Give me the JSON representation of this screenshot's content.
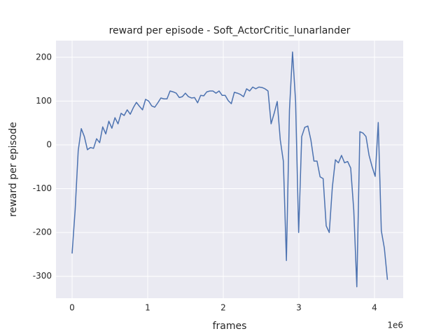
{
  "chart_data": {
    "type": "line",
    "title": "reward per episode - Soft_ActorCritic_lunarlander",
    "xlabel": "frames",
    "ylabel": "reward per episode",
    "x_offset_label": "1e6",
    "x": [
      0,
      40500,
      81000,
      121500,
      162000,
      202500,
      243000,
      283500,
      324000,
      364500,
      405000,
      445500,
      486000,
      526500,
      567000,
      607500,
      648000,
      688500,
      729000,
      769500,
      810000,
      850500,
      891000,
      931500,
      972000,
      1012500,
      1053000,
      1093500,
      1134000,
      1174500,
      1215000,
      1255500,
      1296000,
      1336500,
      1377000,
      1417500,
      1458000,
      1498500,
      1539000,
      1579500,
      1620000,
      1660500,
      1701000,
      1741500,
      1782000,
      1822500,
      1863000,
      1903500,
      1944000,
      1984500,
      2025000,
      2065500,
      2106000,
      2146500,
      2187000,
      2227500,
      2268000,
      2308500,
      2349000,
      2389500,
      2430000,
      2470500,
      2511000,
      2551500,
      2592000,
      2632500,
      2673000,
      2713500,
      2754000,
      2794500,
      2835000,
      2875500,
      2916000,
      2956500,
      2997000,
      3037500,
      3078000,
      3118500,
      3159000,
      3199500,
      3240000,
      3280500,
      3321000,
      3361500,
      3402000,
      3442500,
      3483000,
      3523500,
      3564000,
      3604500,
      3645000,
      3685500,
      3726000,
      3766500,
      3807000,
      3847500,
      3888000,
      3928500,
      3969000,
      4009500,
      4050000,
      4090500,
      4131000,
      4171500
    ],
    "series": [
      {
        "name": "reward",
        "color": "#4c72b0",
        "values": [
          -248,
          -148,
          -13,
          37,
          19,
          -11,
          -6,
          -8,
          14,
          5,
          41,
          25,
          54,
          38,
          62,
          48,
          72,
          67,
          80,
          70,
          85,
          97,
          88,
          80,
          104,
          100,
          89,
          86,
          96,
          107,
          105,
          105,
          123,
          121,
          118,
          108,
          110,
          118,
          110,
          107,
          108,
          96,
          113,
          112,
          121,
          123,
          123,
          118,
          123,
          113,
          113,
          101,
          94,
          120,
          118,
          115,
          110,
          128,
          123,
          132,
          128,
          132,
          131,
          128,
          123,
          48,
          72,
          99,
          11,
          -37,
          -264,
          80,
          212,
          99,
          -200,
          19,
          40,
          43,
          11,
          -37,
          -37,
          -73,
          -77,
          -185,
          -200,
          -97,
          -34,
          -41,
          -24,
          -41,
          -38,
          -53,
          -149,
          -324,
          30,
          27,
          19,
          -24,
          -50,
          -72,
          51,
          -196,
          -236,
          -308
        ]
      }
    ],
    "xlim": [
      -213000,
      4380000
    ],
    "ylim": [
      -350,
      238
    ],
    "xticks": [
      {
        "value": 0,
        "label": "0"
      },
      {
        "value": 1000000,
        "label": "1"
      },
      {
        "value": 2000000,
        "label": "2"
      },
      {
        "value": 3000000,
        "label": "3"
      },
      {
        "value": 4000000,
        "label": "4"
      }
    ],
    "yticks": [
      -300,
      -200,
      -100,
      0,
      100,
      200
    ],
    "grid": true,
    "background": "#eaeaf2"
  }
}
